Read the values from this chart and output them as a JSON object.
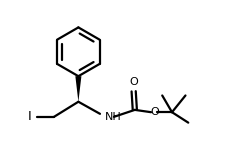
{
  "bg_color": "#ffffff",
  "line_color": "#000000",
  "line_width": 1.6,
  "fig_width": 2.52,
  "fig_height": 1.64,
  "dpi": 100,
  "label_I": "I",
  "label_O1": "O",
  "label_O2": "O",
  "label_NH": "NH",
  "font_size_labels": 8.0,
  "xlim": [
    0,
    10.5
  ],
  "ylim": [
    0,
    7.0
  ]
}
